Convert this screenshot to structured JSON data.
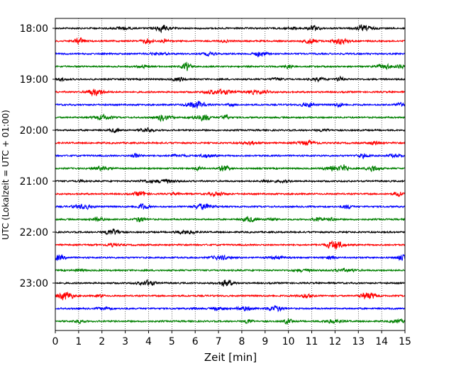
{
  "chart_data": {
    "type": "line",
    "title": "",
    "xlabel": "Zeit  [min]",
    "ylabel": "UTC (Lokalzeit = UTC + 01:00)",
    "xlim": [
      0,
      15
    ],
    "x_ticks": [
      "0",
      "1",
      "2",
      "3",
      "4",
      "5",
      "6",
      "7",
      "8",
      "9",
      "10",
      "11",
      "12",
      "13",
      "14",
      "15"
    ],
    "y_ticks": [
      {
        "label": "18:00",
        "trace": 0
      },
      {
        "label": "19:00",
        "trace": 4
      },
      {
        "label": "20:00",
        "trace": 8
      },
      {
        "label": "21:00",
        "trace": 12
      },
      {
        "label": "22:00",
        "trace": 16
      },
      {
        "label": "23:00",
        "trace": 20
      }
    ],
    "trace_count": 24,
    "trace_minutes": 15,
    "trace_colors": [
      "#000000",
      "#ff0000",
      "#0000ff",
      "#008000"
    ],
    "grid": "vertical dotted lines at each minute",
    "amplitude_note": "seismogram-style noise traces"
  }
}
